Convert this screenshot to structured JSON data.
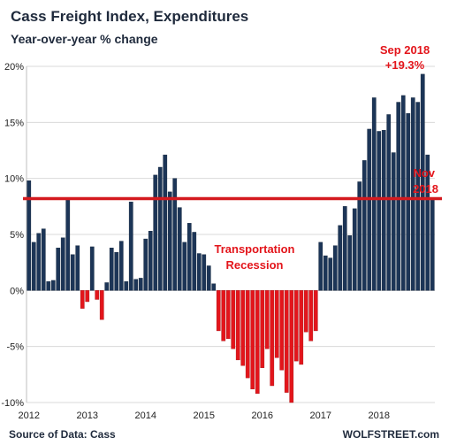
{
  "chart_data": {
    "type": "bar",
    "title": "Cass Freight Index, Expenditures",
    "subtitle": "Year-over-year % change",
    "ylim": [
      -10,
      20
    ],
    "y_ticks": [
      "20%",
      "15%",
      "10%",
      "5%",
      "0%",
      "-5%",
      "-10%"
    ],
    "x_ticks": [
      "2012",
      "2013",
      "2014",
      "2015",
      "2016",
      "2017",
      "2018"
    ],
    "grid": true,
    "colors": {
      "positive": "#1c3557",
      "negative": "#e3151b",
      "line": "#d41a1f",
      "text": "#1f2a3c"
    },
    "values": [
      9.8,
      4.3,
      5.1,
      5.5,
      0.8,
      0.9,
      3.8,
      4.7,
      8.2,
      3.2,
      4.0,
      -1.6,
      -1.0,
      3.9,
      -0.8,
      -2.6,
      0.7,
      3.8,
      3.4,
      4.4,
      0.8,
      7.9,
      1.0,
      1.1,
      4.6,
      5.3,
      10.3,
      11.0,
      12.1,
      8.8,
      10.0,
      7.4,
      4.3,
      6.0,
      5.2,
      3.3,
      3.2,
      2.2,
      0.6,
      -3.6,
      -4.5,
      -4.3,
      -5.2,
      -6.2,
      -6.7,
      -7.8,
      -8.8,
      -9.2,
      -6.9,
      -5.2,
      -8.5,
      -6.0,
      -7.1,
      -9.1,
      -10.0,
      -6.3,
      -6.6,
      -3.7,
      -4.5,
      -3.6,
      4.3,
      3.1,
      2.9,
      4.0,
      5.8,
      7.5,
      4.9,
      7.3,
      9.7,
      11.6,
      14.4,
      17.2,
      14.2,
      14.3,
      15.7,
      12.3,
      16.8,
      17.4,
      15.8,
      17.2,
      16.8,
      19.3,
      12.1,
      8.2
    ],
    "reference_line": 8.2,
    "annotations": {
      "peak": [
        "Sep 2018",
        "+19.3%"
      ],
      "latest": [
        "Nov",
        "2018"
      ],
      "recession": [
        "Transportation",
        "Recession"
      ]
    }
  },
  "footer": {
    "source": "Source of Data: Cass",
    "brand": "WOLFSTREET.com"
  }
}
